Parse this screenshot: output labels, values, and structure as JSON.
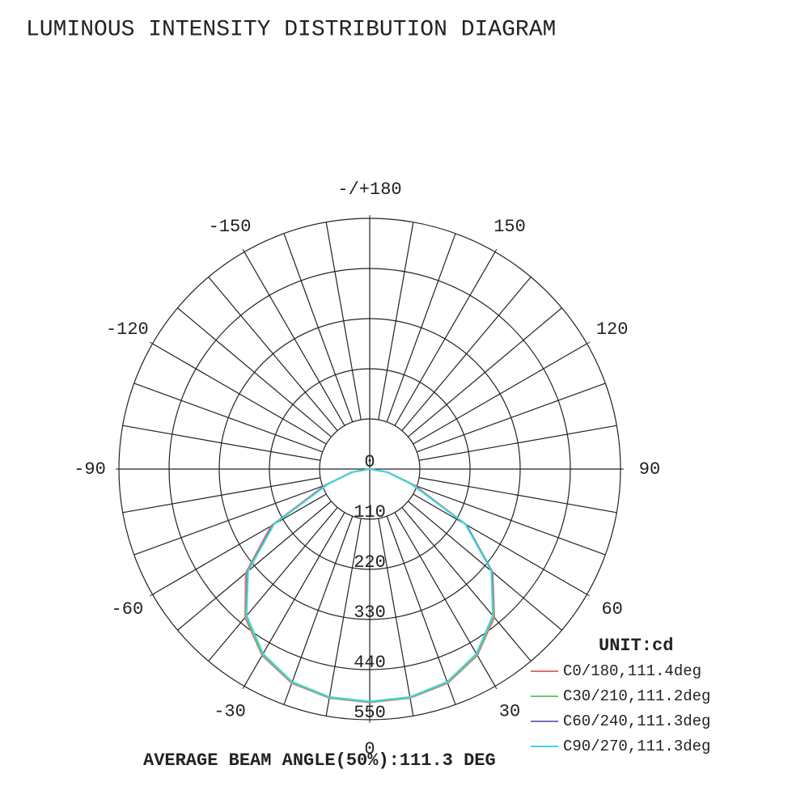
{
  "chart_data": {
    "type": "polar",
    "title": "LUMINOUS INTENSITY DISTRIBUTION DIAGRAM",
    "unit_label": "UNIT:cd",
    "footnote": "AVERAGE BEAM ANGLE(50%):111.3 DEG",
    "angles": [
      -90,
      -80,
      -70,
      -60,
      -50,
      -40,
      -30,
      -20,
      -10,
      0,
      10,
      20,
      30,
      40,
      50,
      60,
      70,
      80,
      90
    ],
    "rlim": [
      0,
      550
    ],
    "rticks": [
      0,
      110,
      220,
      330,
      440,
      550
    ],
    "angle_ticks": [
      {
        "value": 180,
        "label": "-/+180"
      },
      150,
      120,
      90,
      60,
      30,
      0,
      -30,
      -60,
      -90,
      -120,
      -150
    ],
    "series": [
      {
        "name": "C0/180,111.4deg",
        "color": "#e07070",
        "values": [
          0,
          40,
          105,
          250,
          355,
          425,
          472,
          500,
          510,
          512,
          510,
          500,
          472,
          425,
          352,
          245,
          105,
          40,
          0
        ]
      },
      {
        "name": "C30/210,111.2deg",
        "color": "#66cc66",
        "values": [
          0,
          40,
          100,
          245,
          350,
          422,
          470,
          498,
          509,
          511,
          509,
          498,
          470,
          422,
          350,
          245,
          100,
          40,
          0
        ]
      },
      {
        "name": "C60/240,111.3deg",
        "color": "#7070c0",
        "values": [
          0,
          40,
          100,
          245,
          350,
          420,
          468,
          497,
          508,
          510,
          508,
          497,
          468,
          420,
          350,
          245,
          100,
          40,
          0
        ]
      },
      {
        "name": "C90/270,111.3deg",
        "color": "#40d8d8",
        "values": [
          0,
          38,
          98,
          242,
          348,
          420,
          468,
          497,
          508,
          510,
          508,
          497,
          468,
          420,
          348,
          242,
          98,
          38,
          0
        ]
      }
    ]
  }
}
